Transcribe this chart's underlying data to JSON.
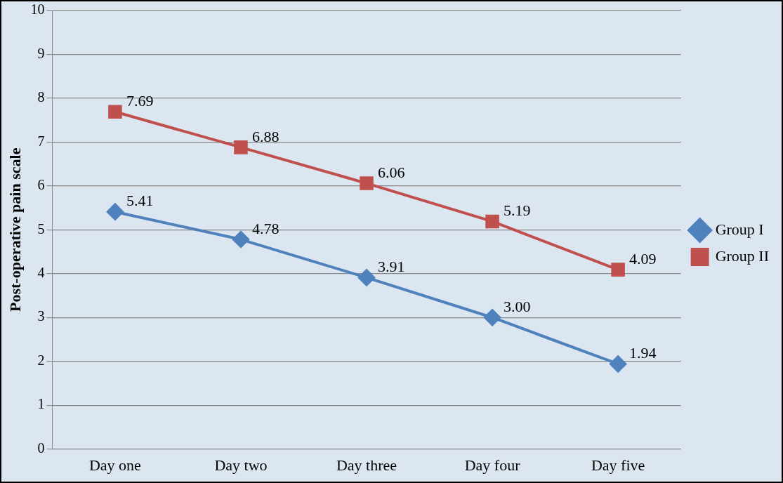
{
  "chart_data": {
    "type": "line",
    "ylabel": "Post-operative pain scale",
    "categories": [
      "Day one",
      "Day two",
      "Day three",
      "Day four",
      "Day five"
    ],
    "series": [
      {
        "name": "Group I",
        "color": "#4f81bd",
        "marker": "diamond",
        "values": [
          5.41,
          4.78,
          3.91,
          3.0,
          1.94
        ],
        "value_labels": [
          "5.41",
          "4.78",
          "3.91",
          "3.00",
          "1.94"
        ]
      },
      {
        "name": "Group II",
        "color": "#c0504d",
        "marker": "square",
        "values": [
          7.69,
          6.88,
          6.06,
          5.19,
          4.09
        ],
        "value_labels": [
          "7.69",
          "6.88",
          "6.06",
          "5.19",
          "4.09"
        ]
      }
    ],
    "ylim": [
      0,
      10
    ],
    "yticks": [
      0,
      1,
      2,
      3,
      4,
      5,
      6,
      7,
      8,
      9,
      10
    ],
    "grid": "y",
    "legend": "right"
  }
}
